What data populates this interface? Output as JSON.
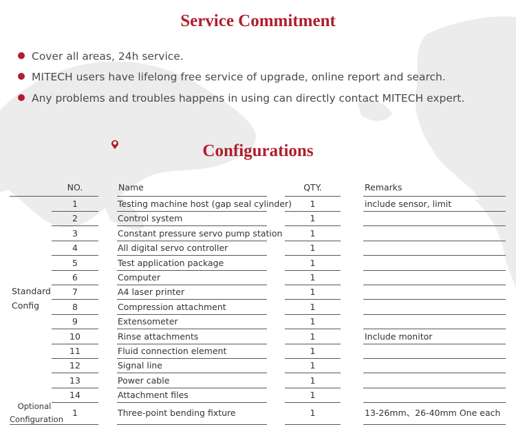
{
  "colors": {
    "accent": "#b01e2d",
    "map": "#ececec"
  },
  "service": {
    "title": "Service Commitment",
    "bullets": [
      "Cover all areas, 24h service.",
      "MITECH users have lifelong free service of upgrade, online report and search.",
      "Any problems and troubles happens in using can directly contact MITECH expert."
    ]
  },
  "config": {
    "title": "Configurations",
    "headers": {
      "no": "NO.",
      "name": "Name",
      "qty": "QTY.",
      "remarks": "Remarks"
    },
    "standard_label": [
      "Standard",
      "Config"
    ],
    "optional_label": [
      "Optional",
      "Configuration"
    ],
    "rows": [
      {
        "no": "1",
        "name": "Testing machine host (gap seal cylinder)",
        "qty": "1",
        "remarks": "include sensor, limit"
      },
      {
        "no": "2",
        "name": "Control system",
        "qty": "1",
        "remarks": ""
      },
      {
        "no": "3",
        "name": "Constant pressure servo pump station",
        "qty": "1",
        "remarks": ""
      },
      {
        "no": "4",
        "name": "All digital servo controller",
        "qty": "1",
        "remarks": ""
      },
      {
        "no": "5",
        "name": "Test application package",
        "qty": "1",
        "remarks": ""
      },
      {
        "no": "6",
        "name": "Computer",
        "qty": "1",
        "remarks": ""
      },
      {
        "no": "7",
        "name": "A4 laser printer",
        "qty": "1",
        "remarks": ""
      },
      {
        "no": "8",
        "name": "Compression attachment",
        "qty": "1",
        "remarks": ""
      },
      {
        "no": "9",
        "name": "Extensometer",
        "qty": "1",
        "remarks": ""
      },
      {
        "no": "10",
        "name": "Rinse attachments",
        "qty": "1",
        "remarks": "Include monitor"
      },
      {
        "no": "11",
        "name": "Fluid connection element",
        "qty": "1",
        "remarks": ""
      },
      {
        "no": "12",
        "name": "Signal line",
        "qty": "1",
        "remarks": ""
      },
      {
        "no": "13",
        "name": "Power cable",
        "qty": "1",
        "remarks": ""
      },
      {
        "no": "14",
        "name": "Attachment files",
        "qty": "1",
        "remarks": ""
      }
    ],
    "optional_rows": [
      {
        "no": "1",
        "name": "Three-point bending fixture",
        "qty": "1",
        "remarks": "13-26mm、26-40mm One each"
      }
    ]
  }
}
